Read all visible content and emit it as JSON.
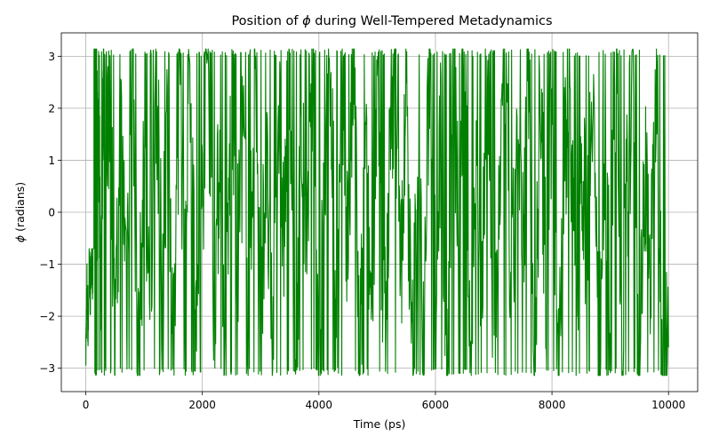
{
  "chart_data": {
    "type": "line",
    "title_prefix": "Position of ",
    "title_symbol": "ϕ",
    "title_suffix": " during Well-Tempered Metadynamics",
    "xlabel": "Time (ps)",
    "ylabel_symbol": "ϕ",
    "ylabel_suffix": " (radians)",
    "xlim": [
      -420,
      10500
    ],
    "ylim": [
      -3.45,
      3.45
    ],
    "grid": true,
    "x_ticks": [
      0,
      2000,
      4000,
      6000,
      8000,
      10000
    ],
    "x_tick_labels": [
      "0",
      "2000",
      "4000",
      "6000",
      "8000",
      "10000"
    ],
    "y_ticks": [
      -3,
      -2,
      -1,
      0,
      1,
      2,
      3
    ],
    "y_tick_labels": [
      "−3",
      "−2",
      "−1",
      "0",
      "1",
      "2",
      "3"
    ],
    "series": [
      {
        "color": "#008000",
        "x_start": 0,
        "x_end": 10000,
        "pattern": "dense oscillation spanning −π to π with frequent periodic wrap-around jumps",
        "keypoints": [
          [
            0,
            -2.75
          ],
          [
            20,
            -1.4
          ],
          [
            40,
            -2.3
          ],
          [
            60,
            -0.9
          ],
          [
            80,
            -1.7
          ],
          [
            100,
            -0.8
          ],
          [
            120,
            -1.6
          ],
          [
            140,
            3.1
          ],
          [
            160,
            1.0
          ],
          [
            180,
            3.1
          ],
          [
            200,
            0.5
          ],
          [
            220,
            2.0
          ],
          [
            260,
            -1.5
          ],
          [
            300,
            3.0
          ],
          [
            350,
            0.2
          ],
          [
            420,
            2.6
          ],
          [
            500,
            -2.9
          ],
          [
            600,
            1.5
          ],
          [
            700,
            -1.0
          ],
          [
            800,
            3.1
          ],
          [
            900,
            -3.0
          ],
          [
            1000,
            0.8
          ],
          [
            1100,
            -2.5
          ],
          [
            1200,
            2.9
          ],
          [
            1300,
            -1.2
          ],
          [
            1400,
            1.8
          ],
          [
            1500,
            -3.05
          ],
          [
            1600,
            2.4
          ],
          [
            1700,
            -0.5
          ],
          [
            1800,
            3.1
          ],
          [
            1900,
            -2.8
          ],
          [
            2000,
            0.3
          ],
          [
            2100,
            3.05
          ],
          [
            2200,
            -1.8
          ],
          [
            2300,
            1.2
          ],
          [
            2400,
            -3.1
          ],
          [
            2500,
            2.7
          ],
          [
            2600,
            -0.9
          ],
          [
            2700,
            1.6
          ],
          [
            2800,
            -2.4
          ],
          [
            2900,
            3.1
          ],
          [
            3000,
            -1.5
          ],
          [
            3100,
            0.9
          ],
          [
            3200,
            -3.0
          ],
          [
            3300,
            2.2
          ],
          [
            3400,
            -0.4
          ],
          [
            3500,
            3.1
          ],
          [
            3600,
            -2.9
          ],
          [
            3700,
            1.4
          ],
          [
            3800,
            -1.1
          ],
          [
            3900,
            2.8
          ],
          [
            4000,
            -3.05
          ],
          [
            4100,
            0.6
          ],
          [
            4200,
            3.0
          ],
          [
            4300,
            -2.2
          ],
          [
            4400,
            1.9
          ],
          [
            4500,
            -0.7
          ],
          [
            4600,
            3.1
          ],
          [
            4700,
            -3.1
          ],
          [
            4800,
            1.1
          ],
          [
            4900,
            -1.9
          ],
          [
            5000,
            2.5
          ],
          [
            5100,
            -2.7
          ],
          [
            5200,
            0.4
          ],
          [
            5300,
            3.1
          ],
          [
            5400,
            -1.3
          ],
          [
            5500,
            2.1
          ],
          [
            5600,
            -3.0
          ],
          [
            5700,
            0.9
          ],
          [
            5800,
            -2.3
          ],
          [
            5900,
            3.05
          ],
          [
            6000,
            -1.0
          ],
          [
            6100,
            1.7
          ],
          [
            6200,
            -3.1
          ],
          [
            6300,
            2.9
          ],
          [
            6400,
            -0.3
          ],
          [
            6500,
            3.1
          ],
          [
            6600,
            -2.6
          ],
          [
            6700,
            1.3
          ],
          [
            6800,
            -1.6
          ],
          [
            6900,
            2.7
          ],
          [
            7000,
            -3.0
          ],
          [
            7100,
            0.7
          ],
          [
            7200,
            3.0
          ],
          [
            7300,
            -2.1
          ],
          [
            7400,
            1.5
          ],
          [
            7500,
            -0.8
          ],
          [
            7600,
            3.1
          ],
          [
            7700,
            -2.9
          ],
          [
            7800,
            1.9
          ],
          [
            7900,
            -1.4
          ],
          [
            8000,
            2.3
          ],
          [
            8100,
            -3.05
          ],
          [
            8200,
            0.5
          ],
          [
            8300,
            3.1
          ],
          [
            8400,
            -2.5
          ],
          [
            8500,
            1.2
          ],
          [
            8600,
            -0.6
          ],
          [
            8700,
            2.9
          ],
          [
            8800,
            -3.1
          ],
          [
            8900,
            1.6
          ],
          [
            9000,
            -1.8
          ],
          [
            9100,
            3.0
          ],
          [
            9200,
            -2.4
          ],
          [
            9300,
            0.8
          ],
          [
            9400,
            2.6
          ],
          [
            9500,
            -3.0
          ],
          [
            9600,
            1.0
          ],
          [
            9700,
            -1.2
          ],
          [
            9800,
            3.1
          ],
          [
            9900,
            -2.8
          ],
          [
            10000,
            -2.6
          ]
        ]
      }
    ]
  }
}
